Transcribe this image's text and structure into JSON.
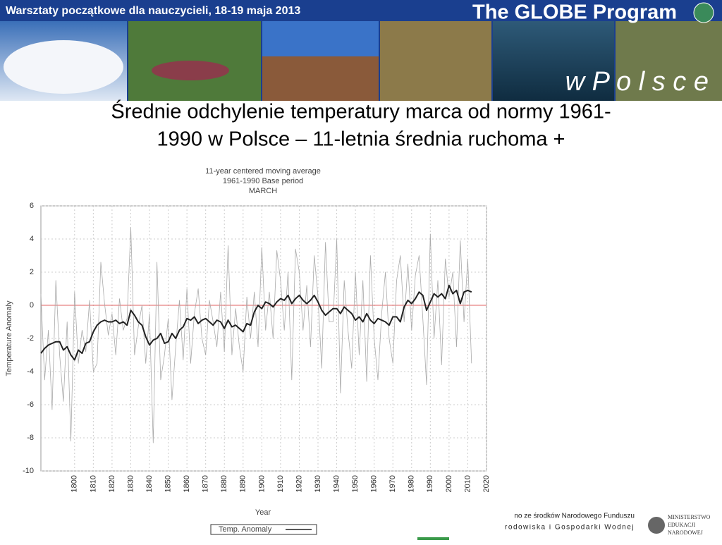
{
  "header": {
    "workshop": "Warsztaty początkowe dla nauczycieli, 18-19 maja 2013",
    "program": "The GLOBE Program",
    "country": "w P o l s c e"
  },
  "slide_title": [
    "Średnie odchylenie temperatury marca od normy 1961-",
    "1990 w Polsce – 11-letnia średnia ruchoma +"
  ],
  "chart_data": {
    "type": "line",
    "title": [
      "11-year centered moving average",
      "1961-1990 Base period",
      "MARCH"
    ],
    "xlabel": "Year",
    "ylabel": "Temperature Anomaly",
    "xlim": [
      1782,
      2020
    ],
    "ylim": [
      -10,
      6
    ],
    "xticks": [
      1800,
      1810,
      1820,
      1830,
      1840,
      1850,
      1860,
      1870,
      1880,
      1890,
      1900,
      1910,
      1920,
      1930,
      1940,
      1950,
      1960,
      1970,
      1980,
      1990,
      2000,
      2010,
      2020
    ],
    "yticks": [
      -10,
      -8,
      -6,
      -4,
      -2,
      0,
      2,
      4,
      6
    ],
    "grid": true,
    "hline": 0,
    "hline_color": "#e06060",
    "legend": "bottom",
    "x": [
      1782,
      1784,
      1786,
      1788,
      1790,
      1792,
      1794,
      1796,
      1798,
      1800,
      1802,
      1804,
      1806,
      1808,
      1810,
      1812,
      1814,
      1816,
      1818,
      1820,
      1822,
      1824,
      1826,
      1828,
      1830,
      1832,
      1834,
      1836,
      1838,
      1840,
      1842,
      1844,
      1846,
      1848,
      1850,
      1852,
      1854,
      1856,
      1858,
      1860,
      1862,
      1864,
      1866,
      1868,
      1870,
      1872,
      1874,
      1876,
      1878,
      1880,
      1882,
      1884,
      1886,
      1888,
      1890,
      1892,
      1894,
      1896,
      1898,
      1900,
      1902,
      1904,
      1906,
      1908,
      1910,
      1912,
      1914,
      1916,
      1918,
      1920,
      1922,
      1924,
      1926,
      1928,
      1930,
      1932,
      1934,
      1936,
      1938,
      1940,
      1942,
      1944,
      1946,
      1948,
      1950,
      1952,
      1954,
      1956,
      1958,
      1960,
      1962,
      1964,
      1966,
      1968,
      1970,
      1972,
      1974,
      1976,
      1978,
      1980,
      1982,
      1984,
      1986,
      1988,
      1990,
      1992,
      1994,
      1996,
      1998,
      2000,
      2002,
      2004,
      2006,
      2008,
      2010,
      2012
    ],
    "series": [
      {
        "name": "Temp. Anomaly",
        "color": "#aaaaaa",
        "width": 0.8,
        "values": [
          0.7,
          -4.5,
          -1.5,
          -6.3,
          1.5,
          -3.0,
          -5.8,
          -1.0,
          -8.2,
          0.8,
          -3.5,
          -1.5,
          -2.8,
          0.3,
          -4.0,
          -3.5,
          2.6,
          0.1,
          -1.8,
          -0.5,
          -3.0,
          0.4,
          -1.5,
          -0.8,
          4.7,
          -3.0,
          -1.3,
          0.0,
          -3.5,
          -0.5,
          -8.3,
          2.6,
          -4.5,
          -3.0,
          -0.8,
          -5.7,
          -2.5,
          0.3,
          -3.3,
          1.0,
          -3.5,
          -0.5,
          1.0,
          -2.0,
          -3.0,
          0.3,
          -1.0,
          -2.5,
          0.8,
          -2.8,
          3.6,
          -3.0,
          -0.2,
          -2.5,
          -4.0,
          0.5,
          -2.0,
          0.8,
          -2.5,
          3.5,
          -1.5,
          0.8,
          -2.0,
          3.3,
          1.5,
          -1.5,
          2.0,
          -4.5,
          3.4,
          2.0,
          -1.5,
          1.2,
          -2.5,
          3.0,
          0.5,
          -3.8,
          3.8,
          -1.0,
          -1.0,
          4.0,
          -5.3,
          1.5,
          -1.5,
          -3.8,
          2.0,
          -3.0,
          1.5,
          -4.6,
          3.0,
          -2.0,
          -4.5,
          -0.5,
          2.0,
          -2.0,
          -3.5,
          1.5,
          3.0,
          -1.0,
          2.5,
          -1.5,
          1.8,
          3.0,
          -0.8,
          -4.8,
          4.3,
          -2.0,
          1.5,
          -3.6,
          2.8,
          0.5,
          2.0,
          -2.5,
          3.9,
          -1.0,
          2.8,
          -3.5
        ]
      },
      {
        "color": "#222222",
        "width": 2,
        "values": [
          -2.9,
          -2.6,
          -2.4,
          -2.3,
          -2.2,
          -2.2,
          -2.7,
          -2.5,
          -3.0,
          -3.3,
          -2.7,
          -2.9,
          -2.3,
          -2.2,
          -1.6,
          -1.2,
          -1.0,
          -0.9,
          -1.0,
          -1.0,
          -0.9,
          -1.1,
          -1.0,
          -1.2,
          -0.3,
          -0.6,
          -1.0,
          -1.2,
          -1.9,
          -2.4,
          -2.1,
          -2.0,
          -1.7,
          -2.3,
          -2.2,
          -1.7,
          -2.0,
          -1.5,
          -1.3,
          -0.8,
          -0.9,
          -0.7,
          -1.1,
          -0.9,
          -0.8,
          -1.0,
          -1.2,
          -0.9,
          -1.0,
          -1.4,
          -0.9,
          -1.3,
          -1.2,
          -1.4,
          -1.6,
          -1.1,
          -1.2,
          -0.4,
          0.0,
          -0.2,
          0.2,
          0.1,
          -0.1,
          0.2,
          0.4,
          0.3,
          0.6,
          0.1,
          0.4,
          0.6,
          0.3,
          0.1,
          0.3,
          0.6,
          0.2,
          -0.3,
          -0.6,
          -0.4,
          -0.2,
          -0.2,
          -0.5,
          -0.1,
          -0.3,
          -0.5,
          -0.9,
          -0.7,
          -1.0,
          -0.5,
          -0.9,
          -1.1,
          -0.8,
          -0.9,
          -1.0,
          -1.2,
          -0.7,
          -0.7,
          -1.0,
          -0.1,
          0.3,
          0.1,
          0.4,
          0.8,
          0.6,
          -0.3,
          0.2,
          0.7,
          0.5,
          0.7,
          0.4,
          1.2,
          0.7,
          0.9,
          0.1,
          0.8,
          0.9,
          0.8
        ]
      }
    ]
  },
  "footer": {
    "fund_line1": "no ze środków Narodowego Funduszu",
    "fund_line2": "rodowiska i Gospodarki Wodnej",
    "ministry": [
      "MINISTERSTWO",
      "EDUKACJI",
      "NARODOWEJ"
    ]
  }
}
